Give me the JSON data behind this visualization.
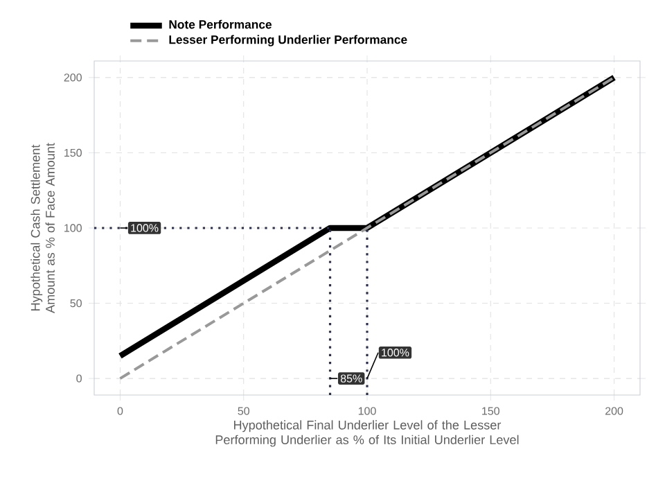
{
  "chart_data": {
    "type": "line",
    "xlabel": "Hypothetical Final Underlier Level of the Lesser Performing Underlier as % of Its Initial Underlier Level",
    "ylabel": "Hypothetical Cash Settlement Amount as % of Face Amount",
    "xlim": [
      -10.5,
      210.5
    ],
    "ylim": [
      -11,
      211
    ],
    "xticks": [
      0,
      50,
      100,
      150,
      200
    ],
    "yticks": [
      0,
      50,
      100,
      150,
      200
    ],
    "grid": true,
    "legend": "top left",
    "series": [
      {
        "name": "Note Performance",
        "color": "#000000",
        "line_style": "solid",
        "x": [
          0,
          85,
          100,
          200
        ],
        "values": [
          15,
          100,
          100,
          200
        ]
      },
      {
        "name": "Lesser Performing Underlier Performance",
        "color": "#999999",
        "line_style": "dashed",
        "x": [
          0,
          200
        ],
        "values": [
          0,
          200
        ]
      }
    ],
    "ref_lines": [
      {
        "axis": "y",
        "value": 100,
        "color": "#2b2f4a",
        "line_style": "dotted"
      },
      {
        "axis": "x",
        "value": 85,
        "color": "#2b2f4a",
        "line_style": "dotted"
      },
      {
        "axis": "x",
        "value": 100,
        "color": "#2b2f4a",
        "line_style": "dotted"
      }
    ],
    "annotations": [
      {
        "text": "100%",
        "x": 0,
        "y": 100
      },
      {
        "text": "85%",
        "x": 85,
        "y": 0
      },
      {
        "text": "100%",
        "x": 100,
        "y": 0
      }
    ]
  }
}
